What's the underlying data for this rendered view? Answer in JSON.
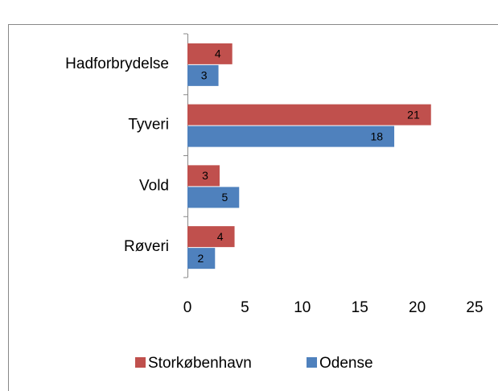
{
  "chart_data": {
    "type": "hbar",
    "categories": [
      "Hadforbrydelse",
      "Tyveri",
      "Vold",
      "Røveri"
    ],
    "series": [
      {
        "name": "Storkøbenhavn",
        "color": "#c0504d",
        "values": [
          3.9,
          21.2,
          2.8,
          4.1
        ],
        "value_labels": [
          "4",
          "21",
          "3",
          "4"
        ]
      },
      {
        "name": "Odense",
        "color": "#4f81bd",
        "values": [
          2.7,
          18.0,
          4.5,
          2.4
        ],
        "value_labels": [
          "3",
          "18",
          "5",
          "2"
        ]
      }
    ],
    "xlim": [
      0,
      25
    ],
    "xticks": [
      0,
      5,
      10,
      15,
      20,
      25
    ],
    "grid": false,
    "legend": "bottom"
  }
}
